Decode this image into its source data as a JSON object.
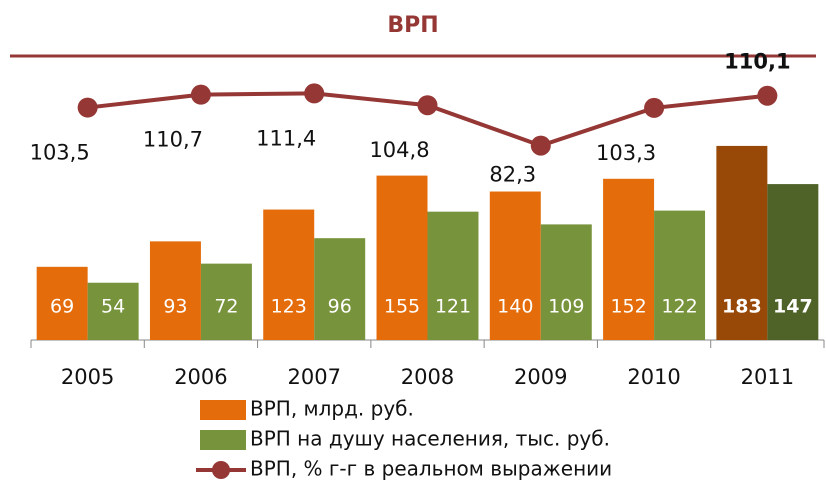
{
  "chart_data": {
    "type": "bar_line",
    "title": "ВРП",
    "categories": [
      "2005",
      "2006",
      "2007",
      "2008",
      "2009",
      "2010",
      "2011"
    ],
    "ylim": [
      0,
      264
    ],
    "y2lim": [
      -26,
      130
    ],
    "series": [
      {
        "name": "ВРП, млрд. руб.",
        "type": "bar",
        "color": "#e46c0a",
        "colors": [
          "#e46c0a",
          "#e46c0a",
          "#e46c0a",
          "#e46c0a",
          "#e46c0a",
          "#e46c0a",
          "#984807"
        ],
        "values": [
          69,
          93,
          123,
          155,
          140,
          152,
          183
        ]
      },
      {
        "name": "ВРП на душу населения, тыс. руб.",
        "type": "bar",
        "color": "#77933c",
        "colors": [
          "#77933c",
          "#77933c",
          "#77933c",
          "#77933c",
          "#77933c",
          "#77933c",
          "#4f6228"
        ],
        "values": [
          54,
          72,
          96,
          121,
          109,
          122,
          147
        ]
      },
      {
        "name": "ВРП, % г-г в реальном выражении",
        "type": "line",
        "axis": "y2",
        "color": "#953735",
        "values": [
          103.5,
          110.7,
          111.4,
          104.8,
          82.3,
          103.3,
          110.1
        ],
        "value_labels": [
          "103,5",
          "110,7",
          "111,4",
          "104,8",
          "82,3",
          "103,3",
          "110,1"
        ]
      }
    ]
  }
}
